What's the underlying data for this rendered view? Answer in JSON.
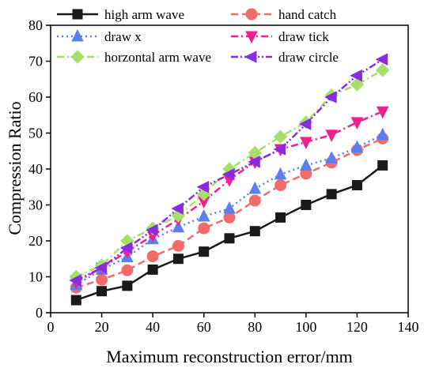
{
  "chart_data": {
    "type": "line",
    "xlabel": "Maximum reconstruction error/mm",
    "ylabel": "Compression Ratio",
    "xlim": [
      0,
      140
    ],
    "ylim": [
      0,
      80
    ],
    "xticks": [
      0,
      20,
      40,
      60,
      80,
      100,
      120,
      140
    ],
    "yticks": [
      0,
      10,
      20,
      30,
      40,
      50,
      60,
      70,
      80
    ],
    "grid": false,
    "legend_position": "top-left",
    "x": [
      10,
      20,
      30,
      40,
      50,
      60,
      70,
      80,
      90,
      100,
      110,
      120,
      130
    ],
    "series": [
      {
        "name": "high arm wave",
        "color": "#1a1a1a",
        "marker": "square",
        "line": "solid",
        "values": [
          3.5,
          6.0,
          7.5,
          12.0,
          15.0,
          17.0,
          20.7,
          22.7,
          26.5,
          30.0,
          33.0,
          35.5,
          41.0
        ]
      },
      {
        "name": "hand catch",
        "color": "#f26b6b",
        "marker": "circle",
        "line": "dash",
        "values": [
          7.0,
          9.2,
          11.8,
          15.7,
          18.6,
          23.5,
          26.5,
          31.2,
          35.5,
          38.7,
          41.8,
          45.3,
          48.5
        ]
      },
      {
        "name": "draw x",
        "color": "#5b7ff0",
        "marker": "triangle-up",
        "line": "dot",
        "values": [
          7.8,
          12.0,
          15.5,
          20.5,
          23.8,
          26.8,
          29.0,
          34.5,
          38.5,
          41.0,
          43.0,
          46.0,
          49.5
        ]
      },
      {
        "name": "draw tick",
        "color": "#f02090",
        "marker": "triangle-down",
        "line": "dashdot",
        "values": [
          8.5,
          12.5,
          17.0,
          21.5,
          26.0,
          31.0,
          37.0,
          42.0,
          45.5,
          47.5,
          49.5,
          53.0,
          56.0
        ]
      },
      {
        "name": "horzontal arm wave",
        "color": "#a6e06a",
        "marker": "diamond",
        "line": "dashdot",
        "values": [
          10.0,
          13.2,
          20.0,
          23.5,
          27.0,
          33.0,
          40.0,
          44.5,
          49.0,
          53.0,
          60.5,
          63.5,
          67.5
        ]
      },
      {
        "name": "draw circle",
        "color": "#8b2be2",
        "marker": "triangle-left",
        "line": "dashdotdot",
        "values": [
          9.0,
          12.5,
          18.0,
          23.0,
          29.0,
          35.0,
          38.5,
          42.0,
          45.5,
          52.5,
          60.0,
          66.0,
          70.5
        ]
      }
    ]
  }
}
